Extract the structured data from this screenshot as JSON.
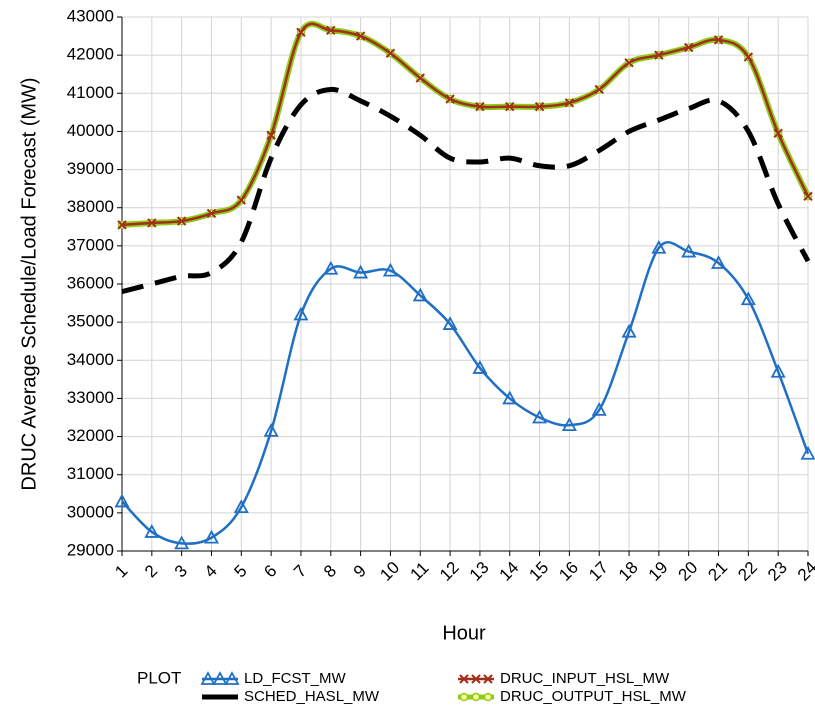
{
  "chart_data": {
    "type": "line",
    "x_label": "Hour",
    "y_label": "DRUC Average Schedule/Load Forecast (MW)",
    "legend_title": "PLOT",
    "x": [
      1,
      2,
      3,
      4,
      5,
      6,
      7,
      8,
      9,
      10,
      11,
      12,
      13,
      14,
      15,
      16,
      17,
      18,
      19,
      20,
      21,
      22,
      23,
      24
    ],
    "xlim": [
      1,
      24
    ],
    "xticks": [
      1,
      2,
      3,
      4,
      5,
      6,
      7,
      8,
      9,
      10,
      11,
      12,
      13,
      14,
      15,
      16,
      17,
      18,
      19,
      20,
      21,
      22,
      23,
      24
    ],
    "ylim": [
      29000,
      43000
    ],
    "yticks": [
      29000,
      30000,
      31000,
      32000,
      33000,
      34000,
      35000,
      36000,
      37000,
      38000,
      39000,
      40000,
      41000,
      42000,
      43000
    ],
    "grid": true,
    "series": [
      {
        "name": "LD_FCST_MW",
        "color": "#1f6fc5",
        "marker": "triangle",
        "line_style": "solid",
        "values": [
          30300,
          29500,
          29200,
          29350,
          30150,
          32150,
          35200,
          36400,
          36300,
          36350,
          35700,
          34950,
          33800,
          33000,
          32500,
          32300,
          32700,
          34750,
          36950,
          36850,
          36550,
          35600,
          33700,
          31550
        ]
      },
      {
        "name": "SCHED_HASL_MW",
        "color": "#000000",
        "marker": "none",
        "line_style": "dashed",
        "values": [
          35800,
          36000,
          36200,
          36300,
          37100,
          39300,
          40700,
          41100,
          40800,
          40400,
          39900,
          39300,
          39200,
          39300,
          39100,
          39100,
          39500,
          40000,
          40300,
          40600,
          40800,
          40000,
          38100,
          36600
        ]
      },
      {
        "name": "DRUC_INPUT_HSL_MW",
        "color": "#a0301a",
        "marker": "x",
        "line_style": "solid",
        "values": [
          37550,
          37600,
          37650,
          37850,
          38200,
          39900,
          42600,
          42650,
          42500,
          42050,
          41400,
          40850,
          40650,
          40650,
          40650,
          40750,
          41100,
          41800,
          42000,
          42200,
          42400,
          41950,
          39950,
          38300
        ]
      },
      {
        "name": "DRUC_OUTPUT_HSL_MW",
        "color": "#8fcc1a",
        "marker": "circle",
        "line_style": "thick",
        "values": [
          37550,
          37600,
          37650,
          37850,
          38200,
          39900,
          42600,
          42650,
          42500,
          42050,
          41400,
          40850,
          40650,
          40650,
          40650,
          40750,
          41100,
          41800,
          42000,
          42200,
          42400,
          41950,
          39950,
          38300
        ]
      }
    ]
  }
}
